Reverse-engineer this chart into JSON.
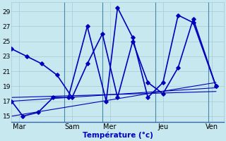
{
  "background_color": "#c8e8f0",
  "line_color": "#0000bb",
  "xlabel": "Température (°c)",
  "xlabel_color": "#0000cc",
  "xlabel_fontsize": 7.5,
  "ylim": [
    14.2,
    30.2
  ],
  "xlim": [
    0,
    56
  ],
  "yticks": [
    15,
    17,
    19,
    21,
    23,
    25,
    27,
    29
  ],
  "ytick_fontsize": 6.5,
  "xtick_fontsize": 7,
  "day_labels": [
    "Mar",
    "Sam",
    "Mer",
    "Jeu",
    "Ven"
  ],
  "day_positions": [
    2,
    16,
    26,
    40,
    53
  ],
  "vline_positions": [
    14,
    24,
    38,
    52
  ],
  "grid_color": "#a8c8d4",
  "grid_lw": 0.5,
  "vline_color": "#4488aa",
  "vline_lw": 0.8,
  "s1_x": [
    0,
    4,
    8,
    12,
    16,
    20,
    24,
    28,
    32,
    36,
    40,
    44,
    48,
    54
  ],
  "s1_y": [
    24,
    23,
    22,
    20.5,
    17.5,
    22,
    26,
    17.5,
    25,
    19.5,
    18,
    21.5,
    28,
    19
  ],
  "s2_x": [
    0,
    3,
    7,
    11,
    15,
    20,
    25,
    28,
    32,
    36,
    40,
    44,
    48,
    54
  ],
  "s2_y": [
    17,
    15,
    15.5,
    17.5,
    17.5,
    27,
    17,
    29.5,
    25.5,
    17.5,
    19.5,
    28.5,
    27.5,
    19
  ],
  "trend1_x": [
    0,
    54
  ],
  "trend1_y": [
    17.0,
    18.8
  ],
  "trend2_x": [
    0,
    54
  ],
  "trend2_y": [
    15.0,
    19.5
  ],
  "trend3_x": [
    0,
    54
  ],
  "trend3_y": [
    17.5,
    18.3
  ]
}
